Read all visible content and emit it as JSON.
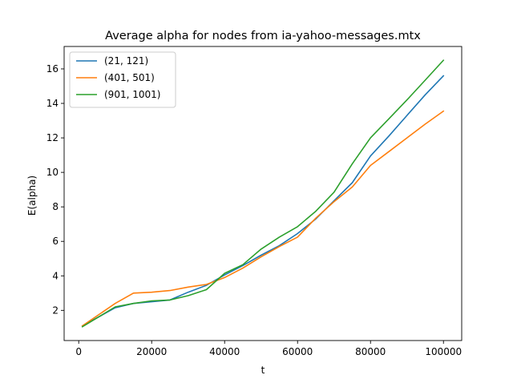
{
  "chart_data": {
    "type": "line",
    "title": "Average alpha for nodes from ia-yahoo-messages.mtx",
    "xlabel": "t",
    "ylabel": "E(alpha)",
    "xlim": [
      -4000,
      105000
    ],
    "ylim": [
      0.25,
      17.3
    ],
    "xticks": [
      0,
      20000,
      40000,
      60000,
      80000,
      100000
    ],
    "yticks": [
      2,
      4,
      6,
      8,
      10,
      12,
      14,
      16
    ],
    "grid": false,
    "legend_position": "top-left",
    "series": [
      {
        "name": "(21, 121)",
        "color": "#1f77b4",
        "x": [
          1000,
          10000,
          15000,
          20000,
          25000,
          30000,
          35000,
          40000,
          45000,
          50000,
          55000,
          60000,
          65000,
          70000,
          75000,
          80000,
          85000,
          90000,
          95000,
          100000
        ],
        "y": [
          1.1,
          2.15,
          2.4,
          2.5,
          2.6,
          3.05,
          3.45,
          4.05,
          4.6,
          5.2,
          5.75,
          6.45,
          7.3,
          8.35,
          9.4,
          10.95,
          12.1,
          13.3,
          14.5,
          15.6
        ]
      },
      {
        "name": "(401, 501)",
        "color": "#ff7f0e",
        "x": [
          1000,
          10000,
          15000,
          20000,
          25000,
          30000,
          35000,
          40000,
          45000,
          50000,
          55000,
          60000,
          65000,
          70000,
          75000,
          80000,
          85000,
          90000,
          95000,
          100000
        ],
        "y": [
          1.1,
          2.4,
          3.0,
          3.05,
          3.15,
          3.35,
          3.5,
          3.9,
          4.45,
          5.1,
          5.7,
          6.25,
          7.35,
          8.3,
          9.15,
          10.4,
          11.2,
          12.0,
          12.8,
          13.55
        ]
      },
      {
        "name": "(901, 1001)",
        "color": "#2ca02c",
        "x": [
          1000,
          10000,
          15000,
          20000,
          25000,
          30000,
          35000,
          40000,
          45000,
          50000,
          55000,
          60000,
          65000,
          70000,
          75000,
          80000,
          85000,
          90000,
          95000,
          100000
        ],
        "y": [
          1.05,
          2.2,
          2.4,
          2.55,
          2.6,
          2.85,
          3.2,
          4.15,
          4.65,
          5.55,
          6.25,
          6.85,
          7.75,
          8.85,
          10.5,
          12.0,
          13.1,
          14.2,
          15.35,
          16.5
        ]
      }
    ]
  }
}
